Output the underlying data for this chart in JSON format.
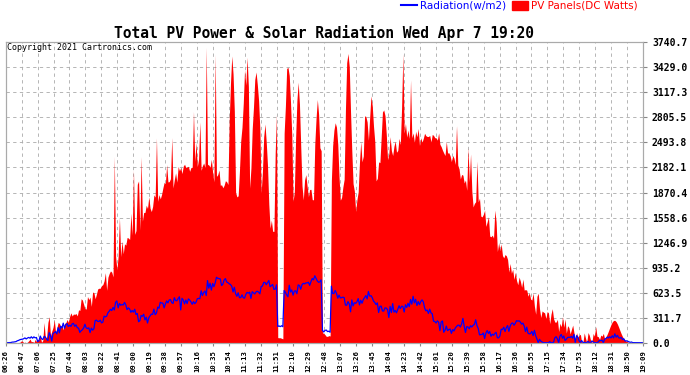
{
  "title": "Total PV Power & Solar Radiation Wed Apr 7 19:20",
  "copyright": "Copyright 2021 Cartronics.com",
  "legend_radiation": "Radiation(w/m2)",
  "legend_pv": "PV Panels(DC Watts)",
  "ylabel_right_ticks": [
    0.0,
    311.7,
    623.5,
    935.2,
    1246.9,
    1558.6,
    1870.4,
    2182.1,
    2493.8,
    2805.5,
    3117.3,
    3429.0,
    3740.7
  ],
  "ymax": 3740.7,
  "ymin": 0.0,
  "bg_color": "#ffffff",
  "plot_bg_color": "#ffffff",
  "pv_color": "#ff0000",
  "radiation_color": "#0000ff",
  "grid_color": "#aaaaaa",
  "title_color": "#000000",
  "copyright_color": "#000000",
  "tick_label_color": "#000000",
  "x_labels": [
    "06:26",
    "06:47",
    "07:06",
    "07:25",
    "07:44",
    "08:03",
    "08:22",
    "08:41",
    "09:00",
    "09:19",
    "09:38",
    "09:57",
    "10:16",
    "10:35",
    "10:54",
    "11:13",
    "11:32",
    "11:51",
    "12:10",
    "12:29",
    "12:48",
    "13:07",
    "13:26",
    "13:45",
    "14:04",
    "14:23",
    "14:42",
    "15:01",
    "15:20",
    "15:39",
    "15:58",
    "16:17",
    "16:36",
    "16:55",
    "17:15",
    "17:34",
    "17:53",
    "18:12",
    "18:31",
    "18:50",
    "19:09"
  ]
}
